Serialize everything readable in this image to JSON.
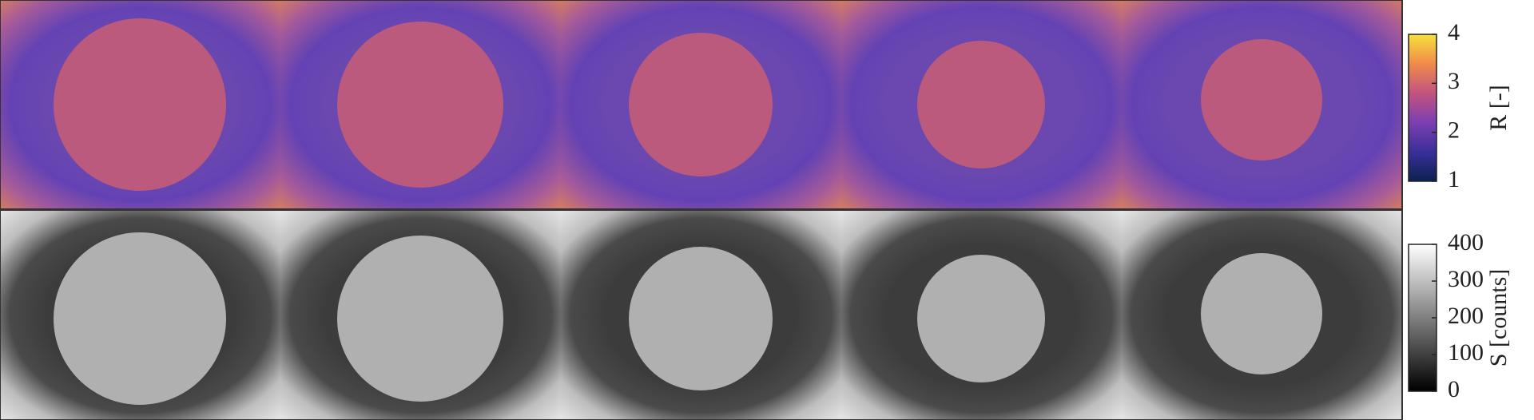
{
  "chart_data": [
    {
      "type": "colorbar",
      "label": "R [-]",
      "colormap": "plasma",
      "ylim": [
        1,
        4
      ],
      "yticks": [
        1,
        2,
        3,
        4
      ]
    },
    {
      "type": "colorbar",
      "label": "S [counts]",
      "colormap": "gray",
      "ylim": [
        0,
        400
      ],
      "yticks": [
        0,
        100,
        200,
        300,
        400
      ]
    }
  ]
}
